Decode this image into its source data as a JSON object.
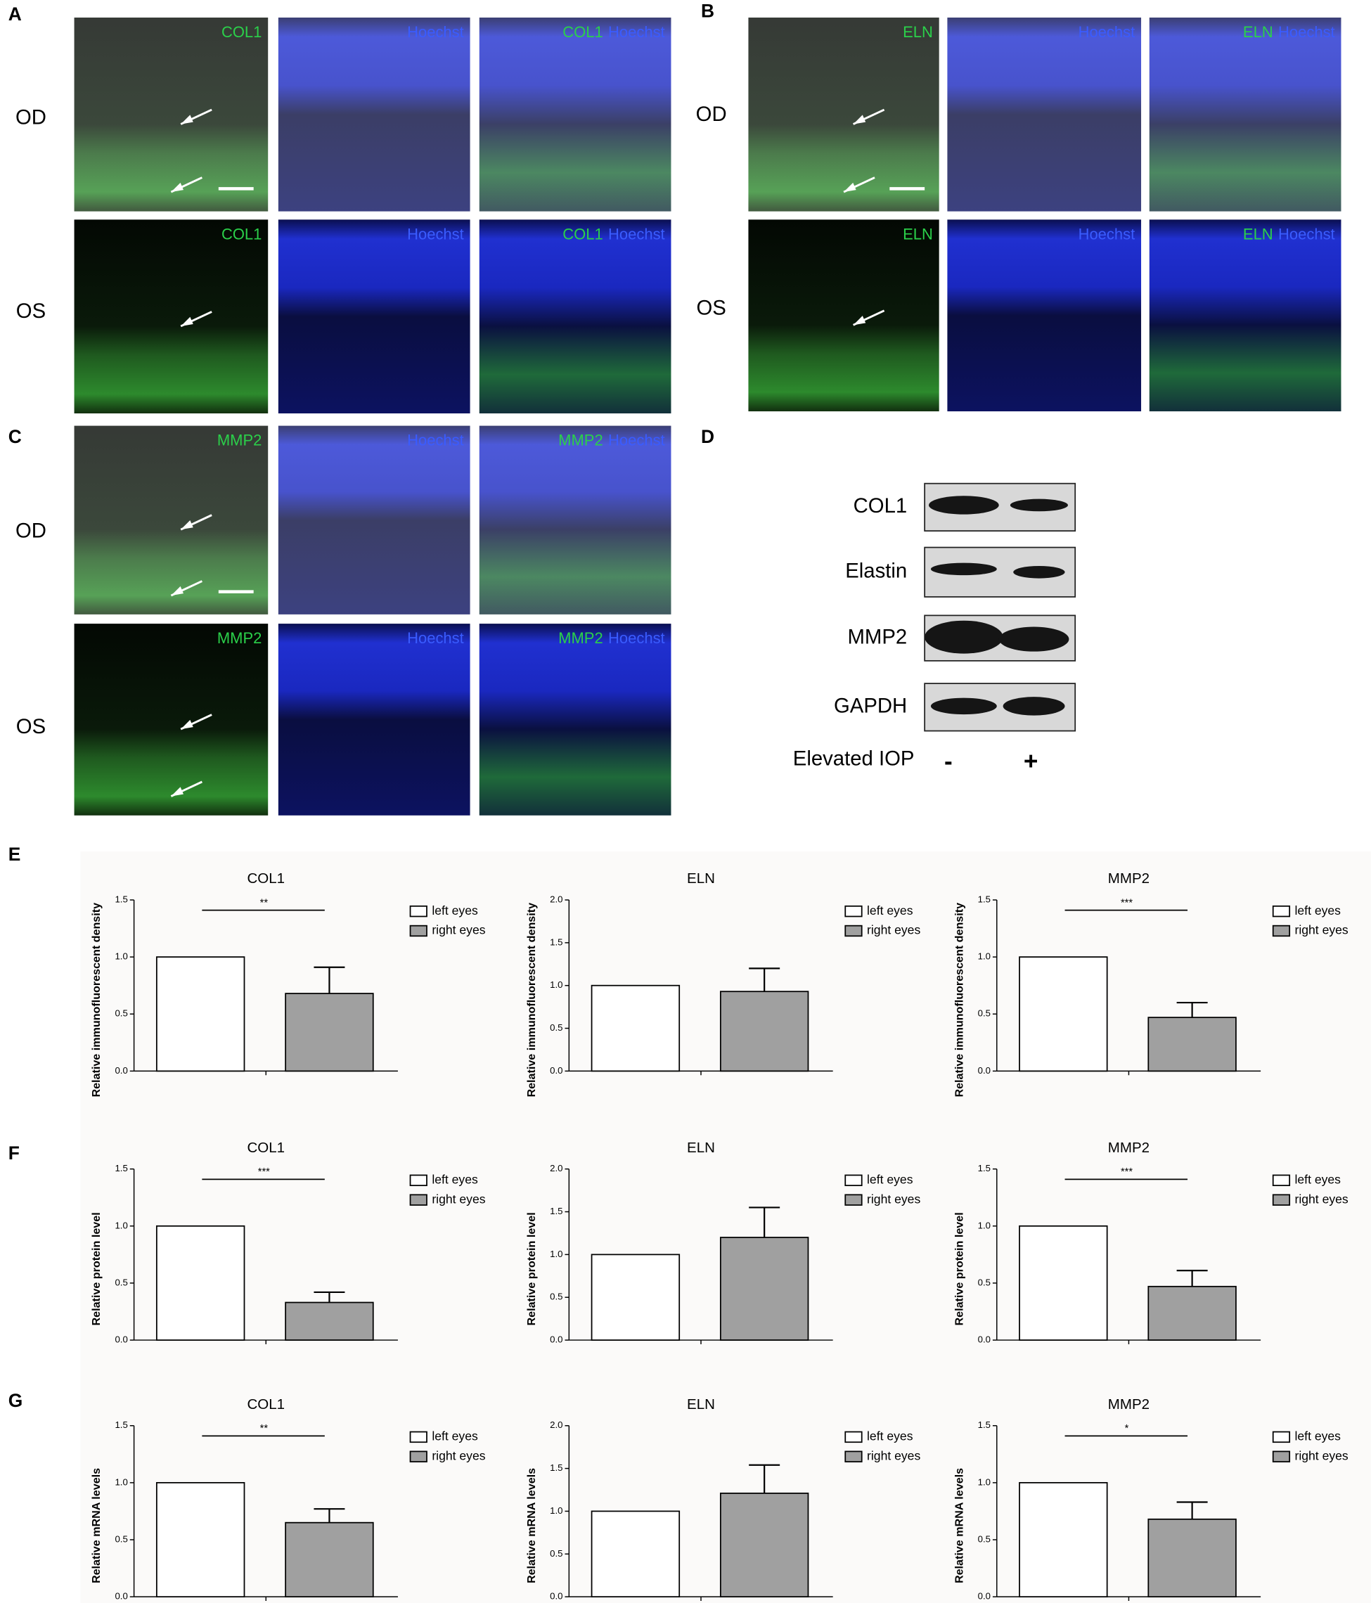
{
  "microscopy": [
    {
      "letter": "A",
      "rows": [
        {
          "label": "OD",
          "images": [
            [
              "COL1"
            ],
            [
              "Hoechst"
            ],
            [
              "COL1",
              "Hoechst"
            ]
          ]
        },
        {
          "label": "OS",
          "images": [
            [
              "COL1"
            ],
            [
              "Hoechst"
            ],
            [
              "COL1",
              "Hoechst"
            ]
          ]
        }
      ]
    },
    {
      "letter": "B",
      "rows": [
        {
          "label": "OD",
          "images": [
            [
              "ELN"
            ],
            [
              "Hoechst"
            ],
            [
              "ELN",
              "Hoechst"
            ]
          ]
        },
        {
          "label": "OS",
          "images": [
            [
              "ELN"
            ],
            [
              "Hoechst"
            ],
            [
              "ELN",
              "Hoechst"
            ]
          ]
        }
      ]
    },
    {
      "letter": "C",
      "rows": [
        {
          "label": "OD",
          "images": [
            [
              "MMP2"
            ],
            [
              "Hoechst"
            ],
            [
              "MMP2",
              "Hoechst"
            ]
          ]
        },
        {
          "label": "OS",
          "images": [
            [
              "MMP2"
            ],
            [
              "Hoechst"
            ],
            [
              "MMP2",
              "Hoechst"
            ]
          ]
        }
      ]
    }
  ],
  "blot": {
    "letter": "D",
    "proteins": [
      "COL1",
      "Elastin",
      "MMP2",
      "GAPDH"
    ],
    "condition": "Elevated IOP",
    "lanes": [
      "-",
      "+"
    ]
  },
  "chart_rows": [
    "E",
    "F",
    "G"
  ],
  "chart_data": [
    {
      "type": "bar",
      "title": "COL1",
      "ylabel": "Relative immunofluorescent density",
      "categories": [
        null
      ],
      "series": [
        {
          "name": "left eyes",
          "color": "#ffffff",
          "values": [
            1.0
          ]
        },
        {
          "name": "right eyes",
          "color": "#a0a0a0",
          "values": [
            0.68
          ],
          "errors": [
            0.23
          ]
        }
      ],
      "ylim": [
        0,
        1.5
      ],
      "yticks": [
        {
          "value": 0,
          "label": "0.0"
        },
        0.5,
        {
          "value": 1,
          "label": "1.0"
        },
        1.5
      ],
      "annotation": "**"
    },
    {
      "type": "bar",
      "title": "ELN",
      "ylabel": "Relative immunofluorescent density",
      "categories": [
        null
      ],
      "series": [
        {
          "name": "left eyes",
          "color": "#ffffff",
          "values": [
            1.0
          ]
        },
        {
          "name": "right eyes",
          "color": "#a0a0a0",
          "values": [
            0.93
          ],
          "errors": [
            0.27
          ]
        }
      ],
      "ylim": [
        0,
        2
      ],
      "yticks": [
        {
          "value": 0,
          "label": "0.0"
        },
        0.5,
        {
          "value": 1,
          "label": "1.0"
        },
        1.5,
        {
          "value": 2,
          "label": "2.0"
        }
      ]
    },
    {
      "type": "bar",
      "title": "MMP2",
      "ylabel": "Relative immunofluorescent density",
      "categories": [
        null
      ],
      "series": [
        {
          "name": "left eyes",
          "color": "#ffffff",
          "values": [
            1.0
          ]
        },
        {
          "name": "right eyes",
          "color": "#a0a0a0",
          "values": [
            0.47
          ],
          "errors": [
            0.13
          ]
        }
      ],
      "ylim": [
        0,
        1.5
      ],
      "yticks": [
        {
          "value": 0,
          "label": "0.0"
        },
        0.5,
        {
          "value": 1,
          "label": "1.0"
        },
        1.5
      ],
      "annotation": "***"
    },
    {
      "type": "bar",
      "title": "COL1",
      "ylabel": "Relative protein level",
      "categories": [
        null
      ],
      "series": [
        {
          "name": "left eyes",
          "color": "#ffffff",
          "values": [
            1.0
          ]
        },
        {
          "name": "right eyes",
          "color": "#a0a0a0",
          "values": [
            0.33
          ],
          "errors": [
            0.09
          ]
        }
      ],
      "ylim": [
        0,
        1.5
      ],
      "yticks": [
        {
          "value": 0,
          "label": "0.0"
        },
        0.5,
        {
          "value": 1,
          "label": "1.0"
        },
        1.5
      ],
      "annotation": "***"
    },
    {
      "type": "bar",
      "title": "ELN",
      "ylabel": "Relative protein level",
      "categories": [
        null
      ],
      "series": [
        {
          "name": "left eyes",
          "color": "#ffffff",
          "values": [
            1.0
          ]
        },
        {
          "name": "right eyes",
          "color": "#a0a0a0",
          "values": [
            1.2
          ],
          "errors": [
            0.35
          ]
        }
      ],
      "ylim": [
        0,
        2
      ],
      "yticks": [
        {
          "value": 0,
          "label": "0.0"
        },
        0.5,
        {
          "value": 1,
          "label": "1.0"
        },
        1.5,
        {
          "value": 2,
          "label": "2.0"
        }
      ]
    },
    {
      "type": "bar",
      "title": "MMP2",
      "ylabel": "Relative protein level",
      "categories": [
        null
      ],
      "series": [
        {
          "name": "left eyes",
          "color": "#ffffff",
          "values": [
            1.0
          ]
        },
        {
          "name": "right eyes",
          "color": "#a0a0a0",
          "values": [
            0.47
          ],
          "errors": [
            0.14
          ]
        }
      ],
      "ylim": [
        0,
        1.5
      ],
      "yticks": [
        {
          "value": 0,
          "label": "0.0"
        },
        0.5,
        {
          "value": 1,
          "label": "1.0"
        },
        1.5
      ],
      "annotation": "***"
    },
    {
      "type": "bar",
      "title": "COL1",
      "ylabel": "Relative mRNA levels",
      "categories": [
        null
      ],
      "series": [
        {
          "name": "left eyes",
          "color": "#ffffff",
          "values": [
            1.0
          ]
        },
        {
          "name": "right eyes",
          "color": "#a0a0a0",
          "values": [
            0.65
          ],
          "errors": [
            0.12
          ]
        }
      ],
      "ylim": [
        0,
        1.5
      ],
      "yticks": [
        {
          "value": 0,
          "label": "0.0"
        },
        0.5,
        {
          "value": 1,
          "label": "1.0"
        },
        1.5
      ],
      "annotation": "**"
    },
    {
      "type": "bar",
      "title": "ELN",
      "ylabel": "Relative mRNA levels",
      "categories": [
        null
      ],
      "series": [
        {
          "name": "left eyes",
          "color": "#ffffff",
          "values": [
            1.0
          ]
        },
        {
          "name": "right eyes",
          "color": "#a0a0a0",
          "values": [
            1.21
          ],
          "errors": [
            0.33
          ]
        }
      ],
      "ylim": [
        0,
        2
      ],
      "yticks": [
        {
          "value": 0,
          "label": "0.0"
        },
        0.5,
        {
          "value": 1,
          "label": "1.0"
        },
        1.5,
        {
          "value": 2,
          "label": "2.0"
        }
      ]
    },
    {
      "type": "bar",
      "title": "MMP2",
      "ylabel": "Relative mRNA levels",
      "categories": [
        null
      ],
      "series": [
        {
          "name": "left eyes",
          "color": "#ffffff",
          "values": [
            1.0
          ]
        },
        {
          "name": "right eyes",
          "color": "#a0a0a0",
          "values": [
            0.68
          ],
          "errors": [
            0.15
          ]
        }
      ],
      "ylim": [
        0,
        1.5
      ],
      "yticks": [
        {
          "value": 0,
          "label": "0.0"
        },
        0.5,
        {
          "value": 1,
          "label": "1.0"
        },
        1.5
      ],
      "annotation": "*"
    }
  ]
}
